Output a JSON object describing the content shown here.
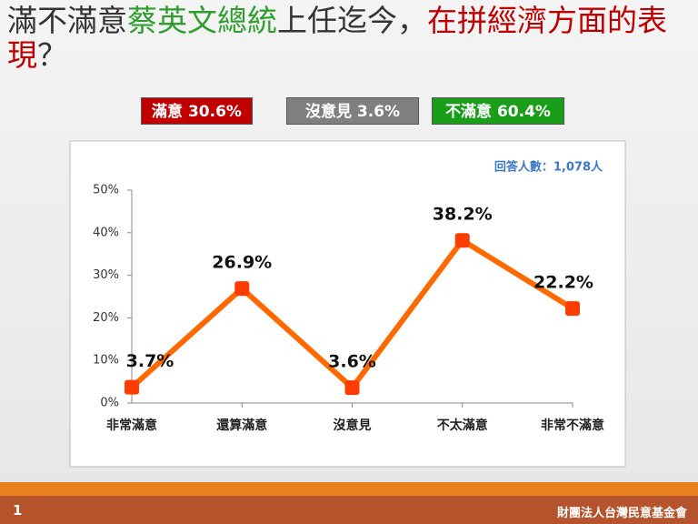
{
  "header": {
    "title_parts": [
      {
        "text": "滿不滿意",
        "color": "#333333"
      },
      {
        "text": "蔡英文總統",
        "color": "#2e9e2e"
      },
      {
        "text": "上任迄今，",
        "color": "#333333"
      },
      {
        "text": "在拼經濟方面的表現",
        "color": "#c00000"
      },
      {
        "text": "？",
        "color": "#333333"
      }
    ]
  },
  "summary_boxes": [
    {
      "text": "滿意 30.6%",
      "color": "#c00000"
    },
    {
      "text": "沒意見 3.6%",
      "color": "#7f7f7f"
    },
    {
      "text": "不滿意 60.4%",
      "color": "#1a9e1a"
    }
  ],
  "chart_data": {
    "type": "line",
    "annotation": "回答人數：1,078人",
    "categories": [
      "非常滿意",
      "還算滿意",
      "沒意見",
      "不太滿意",
      "非常不滿意"
    ],
    "values": [
      3.7,
      26.9,
      3.6,
      38.2,
      22.2
    ],
    "value_labels": [
      "3.7%",
      "26.9%",
      "3.6%",
      "38.2%",
      "22.2%"
    ],
    "color": "#ff6a00",
    "marker_color": "#ff3c00",
    "ylim": [
      0,
      50
    ],
    "yticks": [
      {
        "value": 0,
        "label": "0%"
      },
      {
        "value": 10,
        "label": "10%"
      },
      {
        "value": 20,
        "label": "20%"
      },
      {
        "value": 30,
        "label": "30%"
      },
      {
        "value": 40,
        "label": "40%"
      },
      {
        "value": 50,
        "label": "50%"
      }
    ],
    "grid": false
  },
  "footer": {
    "page_number": "1",
    "organization": "財團法人台灣民意基金會"
  }
}
